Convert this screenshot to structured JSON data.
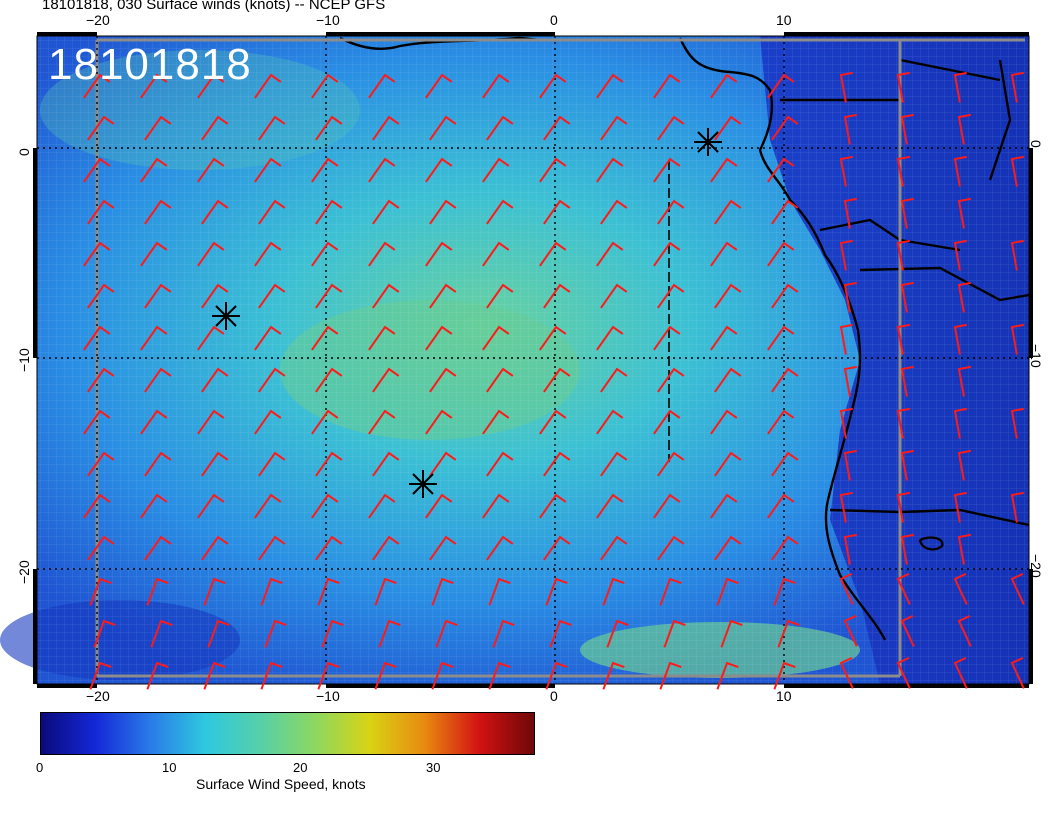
{
  "title": "18101818, 030 Surface winds (knots) -- NCEP GFS",
  "date_label": "18101818",
  "lon_ticks": [
    "−20",
    "−10",
    "0",
    "10"
  ],
  "lat_ticks_left": [
    "0",
    "−10",
    "−20"
  ],
  "lat_ticks_right": [
    "0",
    "−10",
    "−20"
  ],
  "colorbar": {
    "label": "Surface Wind Speed, knots",
    "ticks": [
      "0",
      "10",
      "20",
      "30"
    ],
    "colors": [
      "#0a0a7a",
      "#1428d8",
      "#2a7be8",
      "#2ec8e0",
      "#56d0a8",
      "#8cd860",
      "#d8d414",
      "#e88a10",
      "#d21212",
      "#6e0808"
    ]
  },
  "colors": {
    "ocean_low": "#1c3ec8",
    "ocean_mid": "#2fa0e0",
    "ocean_high": "#5ad0b4",
    "land": "#1630b8",
    "barb": "#ff1a1a",
    "coast": "#000000",
    "grid": "#000000"
  },
  "markers": [
    "asterisk-marker",
    "asterisk-marker",
    "asterisk-marker"
  ]
}
